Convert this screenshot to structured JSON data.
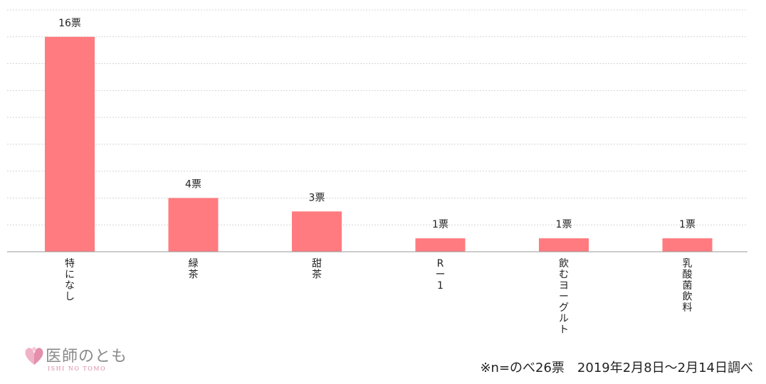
{
  "chart_data": {
    "type": "bar",
    "categories": [
      "特になし",
      "緑茶",
      "甜茶",
      "R-1",
      "飲むヨーグルト",
      "乳酸菌飲料"
    ],
    "category_labels_vertical": [
      [
        "特",
        "に",
        "な",
        "し"
      ],
      [
        "緑",
        "茶"
      ],
      [
        "甜",
        "茶"
      ],
      [
        "R",
        "ー",
        "1"
      ],
      [
        "飲",
        "む",
        "ヨ",
        "ー",
        "グ",
        "ル",
        "ト"
      ],
      [
        "乳",
        "酸",
        "菌",
        "飲",
        "料"
      ]
    ],
    "values": [
      16,
      4,
      3,
      1,
      1,
      1
    ],
    "data_labels": [
      "16票",
      "4票",
      "3票",
      "1票",
      "1票",
      "1票"
    ],
    "ylim": [
      0,
      18
    ],
    "grid": true,
    "title": "",
    "xlabel": "",
    "ylabel": "",
    "bar_color": "#ff7b7f"
  },
  "logo": {
    "title": "医師のとも",
    "subtitle": "ISHI NO TOMO",
    "accent_color": "#e8a0b8"
  },
  "footnote": "※n=のべ26票　2019年2月8日～2月14日調べ"
}
